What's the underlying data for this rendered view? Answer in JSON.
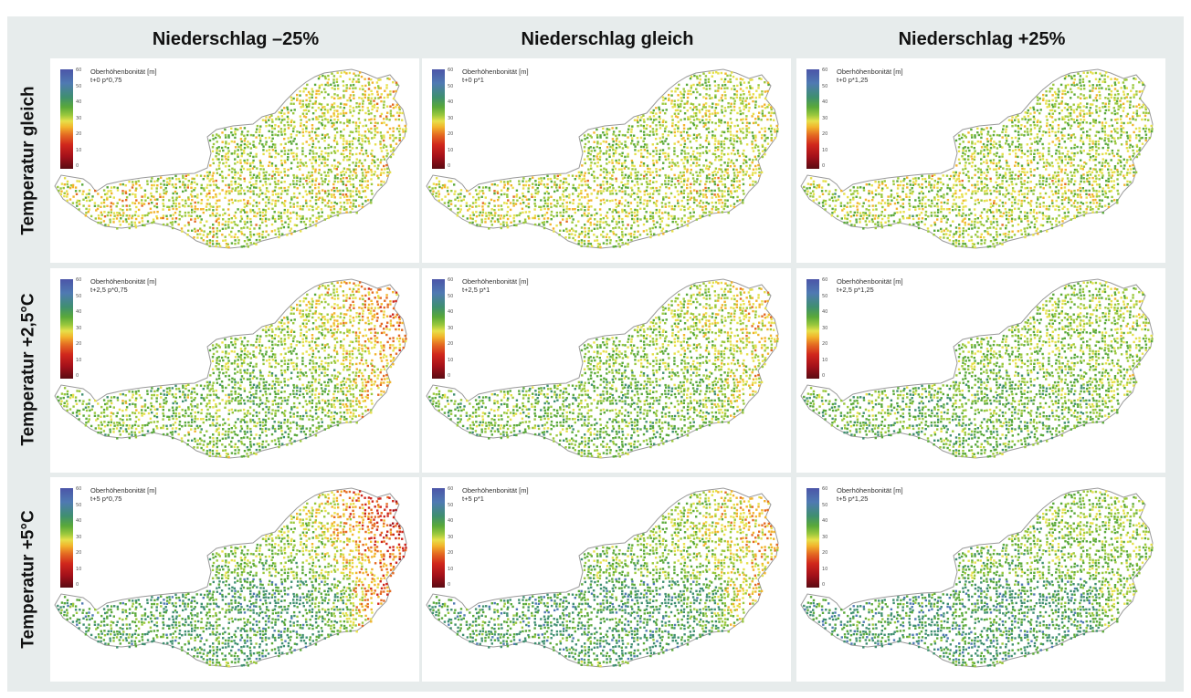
{
  "columns": [
    "Niederschlag –25%",
    "Niederschlag gleich",
    "Niederschlag +25%"
  ],
  "rows": [
    "Temperatur gleich",
    "Temperatur +2,5°C",
    "Temperatur +5°C"
  ],
  "legend": {
    "title": "Oberhöhenbonität [m]",
    "ticks": [
      "60",
      "50",
      "40",
      "30",
      "20",
      "10",
      "0"
    ],
    "colors": [
      "#4b55a8",
      "#4f7ab2",
      "#3f8f70",
      "#5aa93a",
      "#9ac83c",
      "#e6e04a",
      "#f2b42c",
      "#e46a22",
      "#d0261c",
      "#a2101a",
      "#5a0b12"
    ]
  },
  "panels": [
    {
      "scenario": "t+0 p*0,75"
    },
    {
      "scenario": "t+0 p*1"
    },
    {
      "scenario": "t+0 p*1,25"
    },
    {
      "scenario": "t+2,5 p*0,75"
    },
    {
      "scenario": "t+2,5 p*1"
    },
    {
      "scenario": "t+2,5 p*1,25"
    },
    {
      "scenario": "t+5 p*0,75"
    },
    {
      "scenario": "t+5 p*1"
    },
    {
      "scenario": "t+5 p*1,25"
    }
  ]
}
